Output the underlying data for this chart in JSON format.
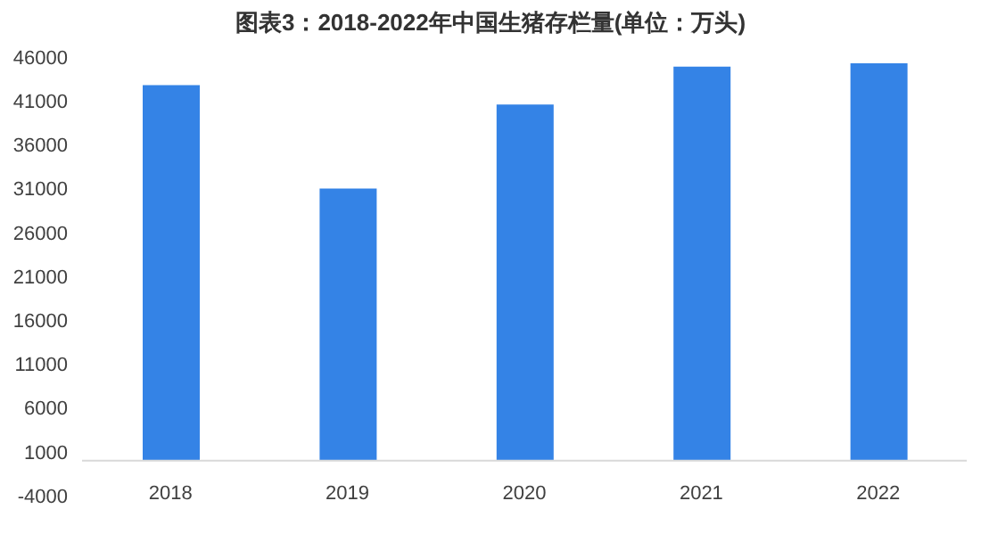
{
  "chart_data": {
    "type": "bar",
    "title": "图表3：2018-2022年中国生猪存栏量(单位：万头)",
    "categories": [
      "2018",
      "2019",
      "2020",
      "2021",
      "2022"
    ],
    "values": [
      42800,
      31000,
      40600,
      44900,
      45300
    ],
    "color": "#3483e6",
    "ylim": [
      -4000,
      46000
    ],
    "yticks": [
      -4000,
      1000,
      6000,
      11000,
      16000,
      21000,
      26000,
      31000,
      36000,
      41000,
      46000
    ],
    "grid": false
  }
}
